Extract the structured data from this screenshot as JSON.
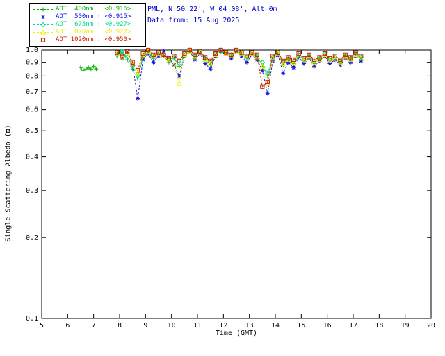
{
  "header": {
    "line1": "PML, N 50 22', W 04 08', Alt 0m",
    "line2": "Data from: 15 Aug 2025",
    "color": "#0000cc"
  },
  "axis": {
    "x_label": "Time (GMT)",
    "y_label": "Single Scattering Albedo (ϖ)"
  },
  "chart_data": {
    "type": "line",
    "xlabel": "Time (GMT)",
    "ylabel": "Single Scattering Albedo (ϖ)",
    "xlim": [
      5,
      20
    ],
    "ylim": [
      0.1,
      1.0
    ],
    "yscale": "log",
    "grid": false,
    "legend_position": "top-left",
    "x_ticks": [
      5,
      6,
      7,
      8,
      9,
      10,
      11,
      12,
      13,
      14,
      15,
      16,
      17,
      18,
      19,
      20
    ],
    "y_ticks": [
      1.0,
      0.9,
      0.8,
      0.7,
      0.6,
      0.5,
      0.4,
      0.3,
      0.2,
      0.1
    ],
    "x_main": [
      7.9,
      8.1,
      8.3,
      8.5,
      8.7,
      8.9,
      9.1,
      9.3,
      9.5,
      9.7,
      9.9,
      10.1,
      10.3,
      10.5,
      10.7,
      10.9,
      11.1,
      11.3,
      11.5,
      11.7,
      11.9,
      12.1,
      12.3,
      12.5,
      12.7,
      12.9,
      13.1,
      13.3,
      13.5,
      13.7,
      13.9,
      14.1,
      14.3,
      14.5,
      14.7,
      14.9,
      15.1,
      15.3,
      15.5,
      15.7,
      15.9,
      16.1,
      16.3,
      16.5,
      16.7,
      16.9,
      17.1,
      17.3
    ],
    "series": [
      {
        "name": "AOT  400nm",
        "mean": "<0.916>",
        "color": "#00b000",
        "marker": "plus",
        "x": [
          6.5,
          6.6,
          6.7,
          6.8,
          6.9,
          7.0,
          7.1,
          7.9,
          8.1,
          8.3,
          8.5,
          8.7,
          8.9,
          9.1,
          9.3,
          9.5,
          9.7,
          9.9,
          10.1,
          10.3,
          10.5,
          10.7,
          10.9,
          11.1,
          11.3,
          11.5,
          11.7,
          11.9,
          12.1,
          12.3,
          12.5,
          12.7,
          12.9,
          13.1,
          13.3,
          13.5,
          13.7,
          13.9,
          14.1,
          14.3,
          14.5,
          14.7,
          14.9,
          15.1,
          15.3,
          15.5,
          15.7,
          15.9,
          16.1,
          16.3,
          16.5,
          16.7,
          16.9,
          17.1,
          17.3
        ],
        "y": [
          0.86,
          0.84,
          0.85,
          0.86,
          0.85,
          0.87,
          0.85,
          0.95,
          0.98,
          0.92,
          0.85,
          0.78,
          0.94,
          0.98,
          0.93,
          0.97,
          0.95,
          0.9,
          0.93,
          0.87,
          0.96,
          0.99,
          0.94,
          0.98,
          0.92,
          0.88,
          0.96,
          1.0,
          0.98,
          0.95,
          0.99,
          0.97,
          0.93,
          0.97,
          0.94,
          0.88,
          0.8,
          0.93,
          0.97,
          0.88,
          0.92,
          0.89,
          0.95,
          0.91,
          0.94,
          0.89,
          0.92,
          0.96,
          0.91,
          0.93,
          0.9,
          0.94,
          0.92,
          0.96,
          0.93
        ]
      },
      {
        "name": "AOT  500nm",
        "mean": "<0.915>",
        "color": "#1515e0",
        "marker": "asterisk",
        "y": [
          0.97,
          0.93,
          0.99,
          0.88,
          0.66,
          0.92,
          0.97,
          0.9,
          0.95,
          0.99,
          0.93,
          0.88,
          0.8,
          0.95,
          0.99,
          0.92,
          0.97,
          0.89,
          0.85,
          0.95,
          0.99,
          0.97,
          0.93,
          0.99,
          0.95,
          0.9,
          0.96,
          0.92,
          0.84,
          0.69,
          0.91,
          0.96,
          0.82,
          0.9,
          0.86,
          0.94,
          0.89,
          0.93,
          0.87,
          0.91,
          0.95,
          0.89,
          0.92,
          0.88,
          0.93,
          0.9,
          0.95,
          0.91
        ]
      },
      {
        "name": "AOT  675nm",
        "mean": "<0.927>",
        "color": "#00d98c",
        "marker": "diamond",
        "y": [
          0.96,
          0.99,
          0.94,
          0.87,
          0.8,
          0.95,
          0.99,
          0.94,
          0.98,
          0.96,
          0.92,
          0.94,
          0.89,
          0.97,
          1.0,
          0.95,
          0.99,
          0.93,
          0.9,
          0.97,
          0.99,
          0.98,
          0.96,
          1.0,
          0.98,
          0.94,
          0.98,
          0.95,
          0.9,
          0.82,
          0.94,
          0.98,
          0.9,
          0.93,
          0.91,
          0.96,
          0.92,
          0.95,
          0.91,
          0.93,
          0.97,
          0.92,
          0.94,
          0.91,
          0.95,
          0.93,
          0.97,
          0.94
        ]
      },
      {
        "name": "AOT  870nm",
        "mean": "<0.927>",
        "color": "#f0f000",
        "marker": "triangle",
        "y": [
          0.97,
          0.94,
          0.98,
          0.89,
          0.82,
          0.96,
          0.99,
          0.95,
          0.97,
          0.95,
          0.91,
          0.88,
          0.75,
          0.96,
          0.99,
          0.94,
          0.98,
          0.92,
          0.89,
          0.96,
          1.0,
          0.97,
          0.95,
          0.99,
          0.97,
          0.93,
          0.97,
          0.94,
          0.87,
          0.75,
          0.93,
          0.97,
          0.89,
          0.92,
          0.9,
          0.95,
          0.91,
          0.94,
          0.9,
          0.92,
          0.96,
          0.91,
          0.93,
          0.9,
          0.94,
          0.92,
          0.96,
          0.93
        ]
      },
      {
        "name": "AOT 1020nm",
        "mean": "<0.950>",
        "color": "#c81e00",
        "marker": "square",
        "y": [
          0.98,
          0.95,
          0.99,
          0.9,
          0.84,
          0.97,
          1.0,
          0.96,
          0.98,
          0.96,
          0.93,
          0.95,
          0.91,
          0.97,
          1.0,
          0.96,
          0.99,
          0.94,
          0.91,
          0.97,
          1.0,
          0.98,
          0.96,
          1.0,
          0.98,
          0.95,
          0.98,
          0.96,
          0.73,
          0.76,
          0.95,
          0.98,
          0.91,
          0.94,
          0.92,
          0.97,
          0.93,
          0.96,
          0.92,
          0.94,
          0.97,
          0.93,
          0.95,
          0.92,
          0.96,
          0.94,
          0.98,
          0.95
        ]
      }
    ]
  }
}
